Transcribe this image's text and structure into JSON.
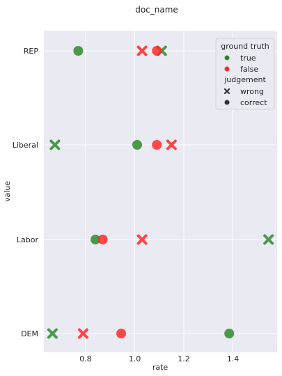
{
  "chart_data": {
    "type": "scatter",
    "title": "doc_name",
    "xlabel": "rate",
    "ylabel": "value",
    "xlim": [
      0.63,
      1.58
    ],
    "xticks": [
      0.8,
      1.0,
      1.2,
      1.4
    ],
    "xtick_labels": [
      "0.8",
      "1.0",
      "1.2",
      "1.4"
    ],
    "categories": [
      "REP",
      "Liberal",
      "Labor",
      "DEM"
    ],
    "grid": true,
    "legend_position": "top-right",
    "legend": {
      "hue_title": "ground truth",
      "hue_entries": [
        {
          "label": "true",
          "color": "#2e8b2e"
        },
        {
          "label": "false",
          "color": "#ff2a2a"
        }
      ],
      "style_title": "judgement",
      "style_entries": [
        {
          "label": "wrong",
          "marker": "x"
        },
        {
          "label": "correct",
          "marker": "o"
        }
      ]
    },
    "colors": {
      "true": "#2e8b2e",
      "false": "#ff2a2a",
      "background": "#eaeaf2",
      "grid": "#ffffff"
    },
    "points": [
      {
        "category": "REP",
        "x": 0.77,
        "ground_truth": "true",
        "judgement": "correct"
      },
      {
        "category": "REP",
        "x": 1.03,
        "ground_truth": "false",
        "judgement": "wrong"
      },
      {
        "category": "REP",
        "x": 1.11,
        "ground_truth": "true",
        "judgement": "wrong"
      },
      {
        "category": "REP",
        "x": 1.09,
        "ground_truth": "false",
        "judgement": "correct"
      },
      {
        "category": "Liberal",
        "x": 0.675,
        "ground_truth": "true",
        "judgement": "wrong"
      },
      {
        "category": "Liberal",
        "x": 1.01,
        "ground_truth": "true",
        "judgement": "correct"
      },
      {
        "category": "Liberal",
        "x": 1.09,
        "ground_truth": "false",
        "judgement": "correct"
      },
      {
        "category": "Liberal",
        "x": 1.15,
        "ground_truth": "false",
        "judgement": "wrong"
      },
      {
        "category": "Labor",
        "x": 0.84,
        "ground_truth": "true",
        "judgement": "correct"
      },
      {
        "category": "Labor",
        "x": 0.87,
        "ground_truth": "false",
        "judgement": "correct"
      },
      {
        "category": "Labor",
        "x": 1.03,
        "ground_truth": "false",
        "judgement": "wrong"
      },
      {
        "category": "Labor",
        "x": 1.545,
        "ground_truth": "true",
        "judgement": "wrong"
      },
      {
        "category": "DEM",
        "x": 0.665,
        "ground_truth": "true",
        "judgement": "wrong"
      },
      {
        "category": "DEM",
        "x": 0.79,
        "ground_truth": "false",
        "judgement": "wrong"
      },
      {
        "category": "DEM",
        "x": 0.945,
        "ground_truth": "false",
        "judgement": "correct"
      },
      {
        "category": "DEM",
        "x": 1.385,
        "ground_truth": "true",
        "judgement": "correct"
      }
    ]
  }
}
